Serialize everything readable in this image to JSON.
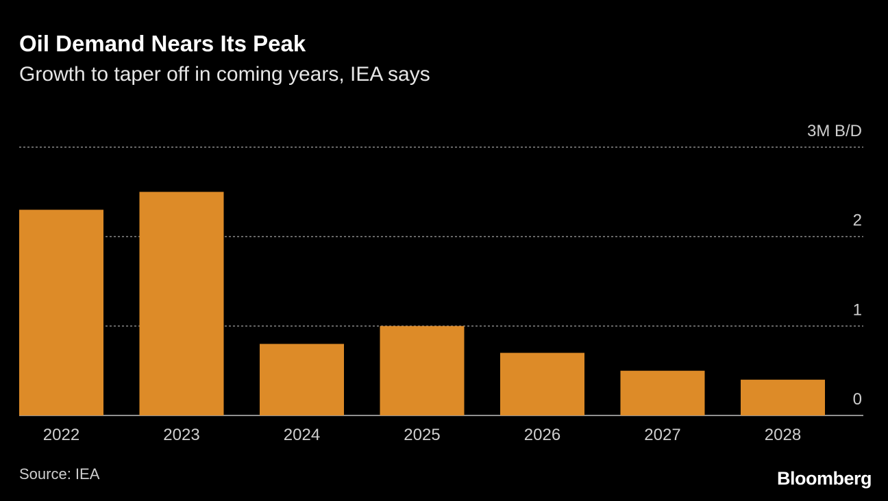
{
  "chart_data": {
    "type": "bar",
    "title": "Oil Demand Nears Its Peak",
    "subtitle": "Growth to taper off in coming years, IEA says",
    "categories": [
      "2022",
      "2023",
      "2024",
      "2025",
      "2026",
      "2027",
      "2028"
    ],
    "values": [
      2.3,
      2.5,
      0.8,
      1.0,
      0.7,
      0.5,
      0.4
    ],
    "color": "#dd8b28",
    "ylim": [
      0,
      3
    ],
    "yticks": [
      0,
      1,
      2,
      {
        "value": 3,
        "label": "3M B/D"
      }
    ],
    "grid": true,
    "source": "Source: IEA",
    "brand": "Bloomberg"
  }
}
